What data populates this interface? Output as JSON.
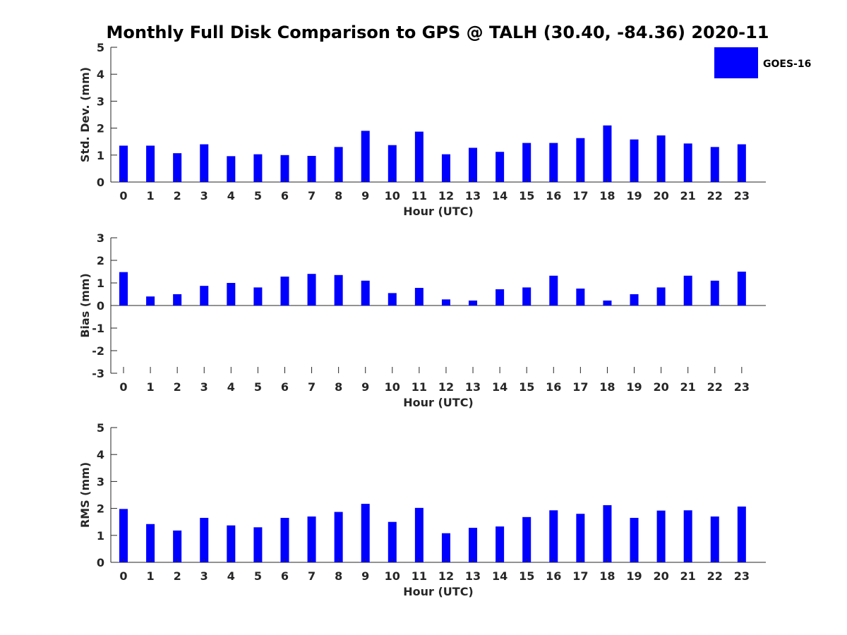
{
  "title": "Monthly Full Disk Comparison to GPS @ TALH (30.40, -84.36) 2020-11",
  "legend": {
    "label": "GOES-16",
    "color": "#0000ff",
    "placement": "top-right"
  },
  "chart_data": [
    {
      "type": "bar",
      "xlabel": "Hour (UTC)",
      "ylabel": "Std. Dev. (mm)",
      "ylim": [
        0,
        5
      ],
      "yticks": [
        0,
        1,
        2,
        3,
        4,
        5
      ],
      "categories": [
        "0",
        "1",
        "2",
        "3",
        "4",
        "5",
        "6",
        "7",
        "8",
        "9",
        "10",
        "11",
        "12",
        "13",
        "14",
        "15",
        "16",
        "17",
        "18",
        "19",
        "20",
        "21",
        "22",
        "23"
      ],
      "series": [
        {
          "name": "GOES-16",
          "color": "#0000ff",
          "values": [
            1.35,
            1.35,
            1.07,
            1.4,
            0.96,
            1.03,
            1.0,
            0.97,
            1.3,
            1.9,
            1.37,
            1.87,
            1.03,
            1.27,
            1.12,
            1.45,
            1.45,
            1.63,
            2.1,
            1.58,
            1.73,
            1.43,
            1.3,
            1.4
          ]
        }
      ]
    },
    {
      "type": "bar",
      "xlabel": "Hour (UTC)",
      "ylabel": "Bias (mm)",
      "ylim": [
        -3,
        3
      ],
      "yticks": [
        -3,
        -2,
        -1,
        0,
        1,
        2,
        3
      ],
      "categories": [
        "0",
        "1",
        "2",
        "3",
        "4",
        "5",
        "6",
        "7",
        "8",
        "9",
        "10",
        "11",
        "12",
        "13",
        "14",
        "15",
        "16",
        "17",
        "18",
        "19",
        "20",
        "21",
        "22",
        "23"
      ],
      "series": [
        {
          "name": "GOES-16",
          "color": "#0000ff",
          "values": [
            1.48,
            0.4,
            0.5,
            0.87,
            1.0,
            0.8,
            1.28,
            1.4,
            1.35,
            1.1,
            0.55,
            0.78,
            0.27,
            0.22,
            0.72,
            0.8,
            1.32,
            0.75,
            0.22,
            0.5,
            0.8,
            1.32,
            1.1,
            1.5
          ]
        }
      ]
    },
    {
      "type": "bar",
      "xlabel": "Hour (UTC)",
      "ylabel": "RMS (mm)",
      "ylim": [
        0,
        5
      ],
      "yticks": [
        0,
        1,
        2,
        3,
        4,
        5
      ],
      "categories": [
        "0",
        "1",
        "2",
        "3",
        "4",
        "5",
        "6",
        "7",
        "8",
        "9",
        "10",
        "11",
        "12",
        "13",
        "14",
        "15",
        "16",
        "17",
        "18",
        "19",
        "20",
        "21",
        "22",
        "23"
      ],
      "series": [
        {
          "name": "GOES-16",
          "color": "#0000ff",
          "values": [
            1.98,
            1.42,
            1.18,
            1.65,
            1.37,
            1.3,
            1.65,
            1.7,
            1.87,
            2.17,
            1.5,
            2.02,
            1.08,
            1.28,
            1.33,
            1.68,
            1.93,
            1.8,
            2.12,
            1.65,
            1.92,
            1.93,
            1.7,
            2.07
          ]
        }
      ]
    }
  ]
}
